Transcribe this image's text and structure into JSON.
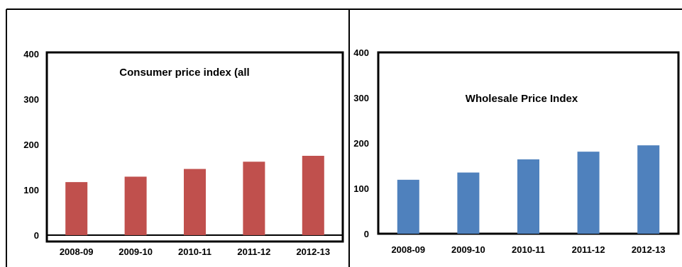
{
  "chart_data": [
    {
      "type": "bar",
      "title": "Consumer price index (all",
      "categories": [
        "2008-09",
        "2009-10",
        "2010-11",
        "2011-12",
        "2012-13"
      ],
      "values": [
        117,
        129,
        146,
        162,
        175
      ],
      "ylim": [
        0,
        400
      ],
      "yticks": [
        "0",
        "100",
        "200",
        "300",
        "400"
      ],
      "xlabel": "",
      "ylabel": "",
      "color": "#c0504d",
      "grid": false,
      "legend": false
    },
    {
      "type": "bar",
      "title": "Wholesale Price Index",
      "categories": [
        "2008-09",
        "2009-10",
        "2010-11",
        "2011-12",
        "2012-13"
      ],
      "values": [
        119,
        135,
        164,
        181,
        195
      ],
      "ylim": [
        0,
        400
      ],
      "yticks": [
        "0",
        "100",
        "200",
        "300",
        "400"
      ],
      "xlabel": "",
      "ylabel": "",
      "color": "#4f81bd",
      "grid": false,
      "legend": false
    }
  ]
}
